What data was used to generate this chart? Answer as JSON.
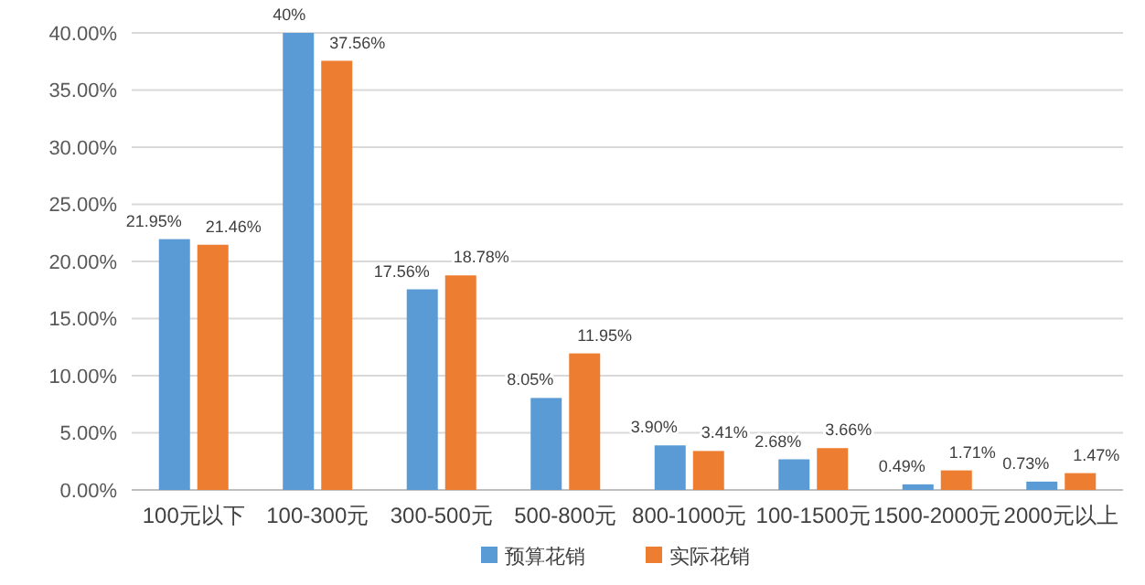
{
  "chart_data": {
    "type": "bar",
    "categories": [
      "100元以下",
      "100-300元",
      "300-500元",
      "500-800元",
      "800-1000元",
      "100-1500元",
      "1500-2000元",
      "2000元以上"
    ],
    "series": [
      {
        "name": "预算花销",
        "color": "#5b9bd5",
        "values": [
          21.95,
          40,
          17.56,
          8.05,
          3.9,
          2.68,
          0.49,
          0.73
        ],
        "value_labels": [
          "21.95%",
          "40%",
          "17.56%",
          "8.05%",
          "3.90%",
          "2.68%",
          "0.49%",
          "0.73%"
        ]
      },
      {
        "name": "实际花销",
        "color": "#ed7d31",
        "values": [
          21.46,
          37.56,
          18.78,
          11.95,
          3.41,
          3.66,
          1.71,
          1.47
        ],
        "value_labels": [
          "21.46%",
          "37.56%",
          "18.78%",
          "11.95%",
          "3.41%",
          "3.66%",
          "1.71%",
          "1.47%"
        ]
      }
    ],
    "ylim": [
      0,
      40
    ],
    "yticks": [
      {
        "value": 0,
        "label": "0.00%"
      },
      {
        "value": 5,
        "label": "5.00%"
      },
      {
        "value": 10,
        "label": "10.00%"
      },
      {
        "value": 15,
        "label": "15.00%"
      },
      {
        "value": 20,
        "label": "20.00%"
      },
      {
        "value": 25,
        "label": "25.00%"
      },
      {
        "value": 30,
        "label": "30.00%"
      },
      {
        "value": 35,
        "label": "35.00%"
      },
      {
        "value": 40,
        "label": "40.00%"
      }
    ],
    "grid": "y",
    "legend": "bottom"
  }
}
